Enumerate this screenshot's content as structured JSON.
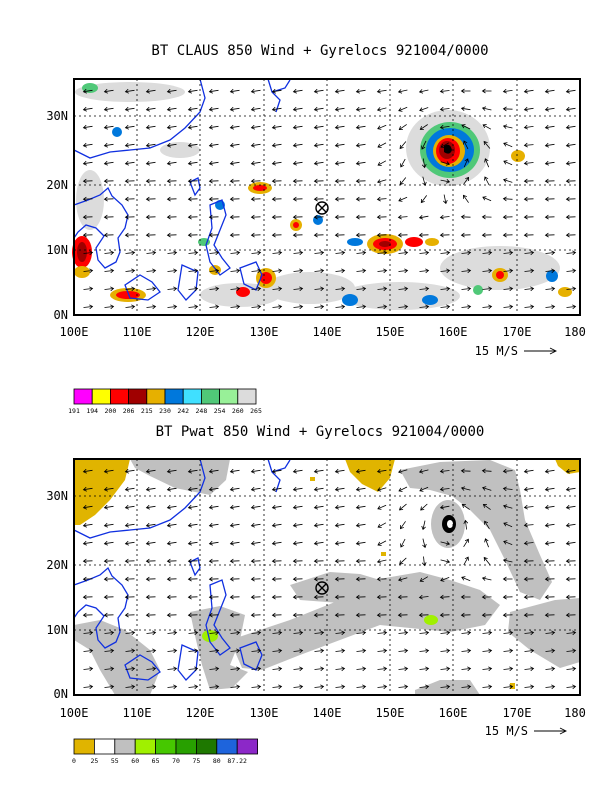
{
  "panels": [
    {
      "title": "BT CLAUS 850 Wind + Gyrelocs 921004/0000",
      "y_ticks": [
        "30N",
        "20N",
        "10N",
        "0N"
      ],
      "x_ticks": [
        "100E",
        "110E",
        "120E",
        "130E",
        "140E",
        "150E",
        "160E",
        "170E",
        "180"
      ],
      "scale_label": "15 M/S",
      "colorbar": {
        "labels": [
          "191",
          "194",
          "200",
          "206",
          "215",
          "230",
          "242",
          "248",
          "254",
          "260",
          "265"
        ],
        "colors": [
          "#ff00ff",
          "#ffff00",
          "#ff0000",
          "#a00000",
          "#e6b000",
          "#0078dc",
          "#40e0ff",
          "#50c878",
          "#98f098",
          "#dcdcdc"
        ]
      }
    },
    {
      "title": "BT Pwat 850 Wind + Gyrelocs 921004/0000",
      "y_ticks": [
        "30N",
        "20N",
        "10N",
        "0N"
      ],
      "x_ticks": [
        "100E",
        "110E",
        "120E",
        "130E",
        "140E",
        "150E",
        "160E",
        "170E",
        "180"
      ],
      "scale_label": "15 M/S",
      "colorbar": {
        "labels": [
          "0",
          "25",
          "55",
          "60",
          "65",
          "70",
          "75",
          "80",
          "87.22"
        ],
        "colors": [
          "#e0b400",
          "#ffffff",
          "#c0c0c0",
          "#a0f000",
          "#46c800",
          "#28a000",
          "#1e7800",
          "#1e64dc",
          "#8c28c8"
        ]
      }
    }
  ]
}
